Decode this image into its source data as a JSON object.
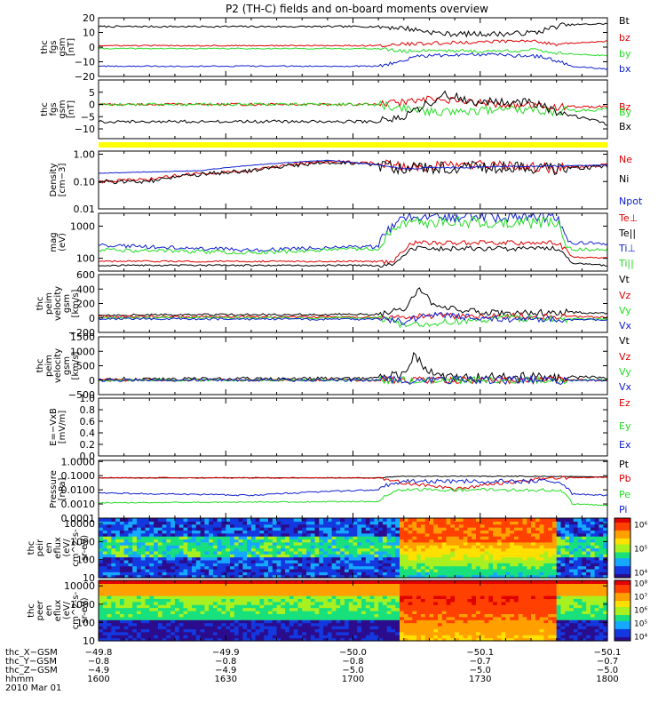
{
  "title": "P2 (TH-C) fields and on-board moments overview",
  "colors": {
    "black": "#000000",
    "red": "#e00000",
    "green": "#22dd22",
    "blue": "#1020d0",
    "yellow": "#ffff00"
  },
  "chart_data": [
    {
      "type": "line",
      "ylabel_lines": [
        "thc",
        "fgs",
        "gsm",
        "[nT]"
      ],
      "ylim": [
        -20,
        20
      ],
      "ticks": [
        {
          "v": 20,
          "t": "20"
        },
        {
          "v": 10,
          "t": "10"
        },
        {
          "v": 0,
          "t": "0"
        },
        {
          "v": -10,
          "t": "−10"
        },
        {
          "v": -20,
          "t": "−20"
        }
      ],
      "series": [
        {
          "name": "Bt",
          "color": "#000000",
          "noise": 0.6,
          "x": [
            0,
            0.55,
            0.6,
            0.68,
            0.72,
            0.8,
            0.86,
            0.91,
            1
          ],
          "y": [
            14,
            14,
            13,
            9,
            9,
            9,
            10,
            15,
            16
          ]
        },
        {
          "name": "bz",
          "color": "#e00000",
          "noise": 0.4,
          "x": [
            0,
            0.55,
            0.6,
            0.7,
            0.8,
            0.86,
            0.9,
            1
          ],
          "y": [
            1,
            1,
            2,
            3,
            4,
            4,
            2,
            4
          ]
        },
        {
          "name": "by",
          "color": "#22dd22",
          "noise": 0.4,
          "x": [
            0,
            0.55,
            0.6,
            0.65,
            0.75,
            0.86,
            0.9,
            1
          ],
          "y": [
            -1,
            -1,
            -3,
            -2,
            -3,
            -2,
            -4,
            -6
          ]
        },
        {
          "name": "bx",
          "color": "#1020d0",
          "noise": 0.4,
          "x": [
            0,
            0.55,
            0.6,
            0.63,
            0.75,
            0.85,
            0.88,
            0.93,
            1
          ],
          "y": [
            -13,
            -13,
            -9,
            -6,
            -5,
            -6,
            -7,
            -13,
            -15
          ]
        }
      ]
    },
    {
      "type": "line",
      "ylabel_lines": [
        "thc",
        "fgs",
        "gsm",
        "[nT]"
      ],
      "ylim": [
        -14,
        10
      ],
      "ticks": [
        {
          "v": 5,
          "t": "5"
        },
        {
          "v": 0,
          "t": "0"
        },
        {
          "v": -5,
          "t": "−5"
        },
        {
          "v": -10,
          "t": "−10"
        }
      ],
      "series": [
        {
          "name": "Bz",
          "color": "#e00000",
          "noise": 0.5,
          "x": [
            0,
            0.55,
            0.65,
            0.8,
            0.88,
            1
          ],
          "y": [
            0,
            0,
            2,
            0,
            -1,
            -1
          ]
        },
        {
          "name": "By",
          "color": "#22dd22",
          "noise": 0.6,
          "x": [
            0,
            0.55,
            0.65,
            0.8,
            0.88,
            1
          ],
          "y": [
            0,
            0,
            -3,
            -2,
            -3,
            -2
          ]
        },
        {
          "name": "Bx",
          "color": "#000000",
          "noise": 0.6,
          "x": [
            0,
            0.55,
            0.6,
            0.68,
            0.75,
            0.85,
            0.9,
            1
          ],
          "y": [
            -7,
            -7,
            -5,
            4,
            1,
            1,
            -3,
            -8
          ]
        }
      ]
    },
    {
      "type": "line",
      "ylabel_lines": [
        "Density",
        "[cm−3]"
      ],
      "ylog": true,
      "ylim": [
        0.01,
        1.3
      ],
      "ticks": [
        {
          "v": 1.0,
          "t": "1.00"
        },
        {
          "v": 0.1,
          "t": "0.10"
        },
        {
          "v": 0.01,
          "t": "0.01"
        }
      ],
      "series": [
        {
          "name": "Ne",
          "color": "#e00000",
          "noise": 0.12,
          "x": [
            0,
            0.1,
            0.2,
            0.3,
            0.45,
            0.55,
            0.6,
            0.75,
            0.9,
            1
          ],
          "y": [
            0.1,
            0.12,
            0.2,
            0.25,
            0.55,
            0.45,
            0.35,
            0.4,
            0.3,
            0.4
          ]
        },
        {
          "name": "Ni",
          "color": "#000000",
          "noise": 0.15,
          "x": [
            0,
            0.1,
            0.2,
            0.3,
            0.45,
            0.55,
            0.6,
            0.75,
            0.9,
            1
          ],
          "y": [
            0.1,
            0.1,
            0.18,
            0.25,
            0.5,
            0.4,
            0.3,
            0.35,
            0.3,
            0.35
          ]
        },
        {
          "name": "Npot",
          "color": "#1020d0",
          "noise": 0.02,
          "x": [
            0,
            0.2,
            0.45,
            0.6,
            1
          ],
          "y": [
            0.2,
            0.25,
            0.6,
            0.3,
            0.4
          ]
        }
      ]
    },
    {
      "type": "line",
      "ylabel_lines": [
        "mag",
        "(eV)"
      ],
      "ylog": true,
      "ylim": [
        40,
        2500
      ],
      "ticks": [
        {
          "v": 1000,
          "t": "1000"
        },
        {
          "v": 100,
          "t": "100"
        }
      ],
      "series": [
        {
          "name": "Te⊥",
          "color": "#e00000",
          "noise": 0.05,
          "x": [
            0,
            0.58,
            0.62,
            0.9,
            0.93,
            1
          ],
          "y": [
            80,
            80,
            300,
            300,
            110,
            100
          ]
        },
        {
          "name": "Te||",
          "color": "#000000",
          "noise": 0.05,
          "x": [
            0,
            0.58,
            0.62,
            0.9,
            0.93,
            1
          ],
          "y": [
            60,
            60,
            200,
            200,
            70,
            60
          ]
        },
        {
          "name": "Ti⊥",
          "color": "#1020d0",
          "noise": 0.12,
          "x": [
            0,
            0.3,
            0.55,
            0.6,
            0.62,
            0.9,
            0.92,
            1
          ],
          "y": [
            250,
            180,
            230,
            1800,
            2000,
            2000,
            300,
            280
          ]
        },
        {
          "name": "Ti||",
          "color": "#22dd22",
          "noise": 0.12,
          "x": [
            0,
            0.3,
            0.55,
            0.6,
            0.62,
            0.9,
            0.92,
            1
          ],
          "y": [
            180,
            150,
            200,
            1100,
            1300,
            1300,
            200,
            180
          ]
        }
      ]
    },
    {
      "type": "line",
      "ylabel_lines": [
        "thc",
        "peim",
        "velocity",
        "gsm",
        "[km/s]"
      ],
      "ylim": [
        -200,
        600
      ],
      "ticks": [
        {
          "v": 600,
          "t": "600"
        },
        {
          "v": 400,
          "t": "400"
        },
        {
          "v": 200,
          "t": "200"
        },
        {
          "v": 0,
          "t": "0"
        },
        {
          "v": -200,
          "t": "−200"
        }
      ],
      "series": [
        {
          "name": "Vt",
          "color": "#000000",
          "noise": 15,
          "x": [
            0,
            0.55,
            0.6,
            0.63,
            0.66,
            0.7,
            0.8,
            0.9,
            1
          ],
          "y": [
            40,
            50,
            120,
            400,
            180,
            120,
            60,
            80,
            70
          ]
        },
        {
          "name": "Vz",
          "color": "#e00000",
          "noise": 15,
          "x": [
            0,
            0.55,
            0.65,
            0.8,
            1
          ],
          "y": [
            20,
            10,
            20,
            30,
            10
          ]
        },
        {
          "name": "Vy",
          "color": "#22dd22",
          "noise": 15,
          "x": [
            0,
            0.55,
            0.6,
            0.7,
            0.8,
            0.9,
            1
          ],
          "y": [
            0,
            0,
            -100,
            -50,
            0,
            -20,
            -10
          ]
        },
        {
          "name": "Vx",
          "color": "#1020d0",
          "noise": 15,
          "x": [
            0,
            0.55,
            0.6,
            0.65,
            0.8,
            1
          ],
          "y": [
            -10,
            -20,
            -50,
            50,
            -20,
            -30
          ]
        }
      ]
    },
    {
      "type": "line",
      "ylabel_lines": [
        "thc",
        "peim",
        "velocity",
        "gsm",
        "[km/s]"
      ],
      "ylim": [
        -500,
        1500
      ],
      "ticks": [
        {
          "v": 1500,
          "t": "1500"
        },
        {
          "v": 1000,
          "t": "1000"
        },
        {
          "v": 500,
          "t": "500"
        },
        {
          "v": 0,
          "t": "0"
        },
        {
          "v": -500,
          "t": "−500"
        }
      ],
      "series": [
        {
          "name": "Vt",
          "color": "#000000",
          "noise": 60,
          "x": [
            0,
            0.55,
            0.6,
            0.62,
            0.65,
            0.7,
            1
          ],
          "y": [
            40,
            60,
            300,
            900,
            300,
            100,
            100
          ]
        },
        {
          "name": "Vz",
          "color": "#e00000",
          "noise": 40,
          "x": [
            0,
            1
          ],
          "y": [
            0,
            0
          ]
        },
        {
          "name": "Vy",
          "color": "#22dd22",
          "noise": 40,
          "x": [
            0,
            1
          ],
          "y": [
            0,
            0
          ]
        },
        {
          "name": "Vx",
          "color": "#1020d0",
          "noise": 50,
          "x": [
            0,
            1
          ],
          "y": [
            0,
            0
          ]
        }
      ]
    },
    {
      "type": "line",
      "ylabel_lines": [
        "E=−VxB",
        "[mV/m]"
      ],
      "ylim": [
        0,
        1
      ],
      "ticks": [
        {
          "v": 1.0,
          "t": "1.0"
        },
        {
          "v": 0.8,
          "t": "0.8"
        },
        {
          "v": 0.6,
          "t": "0.6"
        },
        {
          "v": 0.4,
          "t": "0.4"
        },
        {
          "v": 0.2,
          "t": "0.2"
        },
        {
          "v": 0.0,
          "t": "0.0"
        }
      ],
      "series": [
        {
          "name": "Ez",
          "color": "#e00000",
          "x": [],
          "y": []
        },
        {
          "name": "Ey",
          "color": "#22dd22",
          "x": [],
          "y": []
        },
        {
          "name": "Ex",
          "color": "#1020d0",
          "x": [],
          "y": []
        }
      ]
    },
    {
      "type": "line",
      "ylabel_lines": [
        "Pressure",
        "[nPa]"
      ],
      "ylog": true,
      "ylim": [
        0.0001,
        1.2
      ],
      "ticks": [
        {
          "v": 1.0,
          "t": "1.0000"
        },
        {
          "v": 0.1,
          "t": "0.1000"
        },
        {
          "v": 0.01,
          "t": "0.0100"
        },
        {
          "v": 0.001,
          "t": "0.0010"
        },
        {
          "v": 0.0001,
          "t": "0.0001"
        }
      ],
      "series": [
        {
          "name": "Pt",
          "color": "#000000",
          "noise": 0.02,
          "x": [
            0,
            0.55,
            0.6,
            0.9,
            1
          ],
          "y": [
            0.07,
            0.07,
            0.09,
            0.09,
            0.08
          ]
        },
        {
          "name": "Pb",
          "color": "#e00000",
          "noise": 0.08,
          "x": [
            0,
            0.55,
            0.6,
            0.7,
            0.8,
            0.9,
            1
          ],
          "y": [
            0.07,
            0.07,
            0.03,
            0.01,
            0.03,
            0.07,
            0.08
          ]
        },
        {
          "name": "Pe",
          "color": "#22dd22",
          "noise": 0.08,
          "x": [
            0,
            0.55,
            0.6,
            0.9,
            0.93,
            1
          ],
          "y": [
            0.0012,
            0.0015,
            0.01,
            0.01,
            0.001,
            0.0008
          ]
        },
        {
          "name": "Pi",
          "color": "#1020d0",
          "noise": 0.1,
          "x": [
            0,
            0.3,
            0.55,
            0.6,
            0.9,
            0.93,
            1
          ],
          "y": [
            0.006,
            0.004,
            0.01,
            0.04,
            0.04,
            0.005,
            0.004
          ]
        }
      ]
    },
    {
      "type": "heatmap",
      "ylabel_lines": [
        "thc",
        "peir",
        "en",
        "eflux",
        "(eV/",
        "cm^2-s-",
        "sr-eV)"
      ],
      "ylog": true,
      "ylim": [
        10,
        20000
      ],
      "ticks": [
        {
          "v": 10000,
          "t": "10000"
        },
        {
          "v": 1000,
          "t": "1000"
        },
        {
          "v": 100,
          "t": "100"
        },
        {
          "v": 10,
          "t": "10"
        }
      ],
      "colorbar_ticks": [
        {
          "v": 0.1,
          "t": "10⁴"
        },
        {
          "v": 0.5,
          "t": "10⁵"
        },
        {
          "v": 0.9,
          "t": "10⁶"
        }
      ]
    },
    {
      "type": "heatmap",
      "ylabel_lines": [
        "thc",
        "peer",
        "en",
        "eflux",
        "(eV/",
        "cm^2-s-",
        "sr-eV)"
      ],
      "ylog": true,
      "ylim": [
        10,
        20000
      ],
      "ticks": [
        {
          "v": 10000,
          "t": "10000"
        },
        {
          "v": 1000,
          "t": "1000"
        },
        {
          "v": 100,
          "t": "100"
        },
        {
          "v": 10,
          "t": "10"
        }
      ],
      "colorbar_ticks": [
        {
          "v": 0.08,
          "t": "10⁴"
        },
        {
          "v": 0.3,
          "t": "10⁵"
        },
        {
          "v": 0.52,
          "t": "10⁶"
        },
        {
          "v": 0.74,
          "t": "10⁷"
        },
        {
          "v": 0.96,
          "t": "10⁸"
        }
      ]
    }
  ],
  "axis": {
    "row_labels": [
      "thc_X−GSM",
      "thc_Y−GSM",
      "thc_Z−GSM",
      "hhmm",
      "2010 Mar 01"
    ],
    "ticks": [
      {
        "f": 0.0,
        "rows": [
          "−49.8",
          "−0.8",
          "−4.9",
          "1600"
        ]
      },
      {
        "f": 0.25,
        "rows": [
          "−49.9",
          "−0.8",
          "−4.9",
          "1630"
        ]
      },
      {
        "f": 0.5,
        "rows": [
          "−50.0",
          "−0.8",
          "−5.0",
          "1700"
        ]
      },
      {
        "f": 0.75,
        "rows": [
          "−50.1",
          "−0.7",
          "−5.0",
          "1730"
        ]
      },
      {
        "f": 1.0,
        "rows": [
          "−50.1",
          "−0.7",
          "−5.0",
          "1800"
        ]
      }
    ]
  }
}
